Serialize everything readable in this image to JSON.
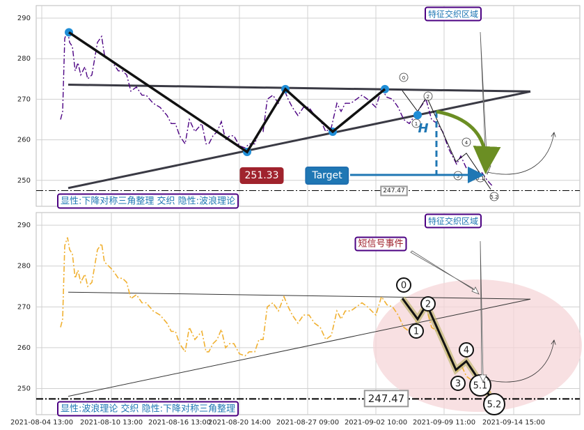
{
  "chart_data": {
    "type": "line",
    "xlim": [
      0,
      156.2
    ],
    "xticks": [
      {
        "value": 1.6,
        "label": "2021-08-04 13:00"
      },
      {
        "value": 21.6,
        "label": "2021-08-10 13:00"
      },
      {
        "value": 41.2,
        "label": "2021-08-16 13:00"
      },
      {
        "value": 58.4,
        "label": "2021-08-20 14:00"
      },
      {
        "value": 78,
        "label": "2021-08-27 09:00"
      },
      {
        "value": 97.6,
        "label": "2021-09-02 10:00"
      },
      {
        "value": 117.2,
        "label": "2021-09-09 11:00"
      },
      {
        "value": 137.2,
        "label": "2021-09-14 15:00"
      }
    ],
    "ylim": [
      243.6,
      293.1
    ],
    "yticks": [
      250,
      260,
      270,
      280,
      290
    ],
    "grid": true,
    "x": [
      7,
      7.6,
      8.2,
      9,
      9.6,
      10.4,
      11.2,
      12,
      12.8,
      14,
      14.8,
      16,
      17.6,
      18.8,
      19.6,
      20.8,
      22,
      23.6,
      24.8,
      26,
      27.2,
      28.8,
      30.4,
      31.6,
      33.6,
      35.6,
      37.6,
      38.8,
      40,
      41.2,
      42.8,
      44,
      45.6,
      47.6,
      48.8,
      49.6,
      50.8,
      52,
      53.2,
      54.4,
      55.6,
      56.8,
      58.4,
      60,
      61.2,
      62.8,
      64,
      65.2,
      66.4,
      68,
      69.6,
      71.2,
      72.4,
      73.6,
      75.2,
      76.8,
      78.4,
      80,
      81.6,
      83.2,
      84.8,
      86.4,
      87.6,
      88.8,
      90.4,
      92,
      93.6,
      95.2,
      97.6,
      99.2,
      100.8,
      102.4,
      104,
      105.6,
      107.2,
      108.8,
      110.4,
      112,
      113.6,
      115.2,
      116.8,
      118.4,
      119.6,
      120.8,
      122,
      123.6,
      125.2,
      126.8,
      128,
      129.6,
      131.2
    ],
    "values": [
      265,
      267,
      285,
      287,
      284,
      283,
      277,
      279,
      276,
      278,
      275,
      276,
      284,
      285.5,
      281,
      280,
      279,
      277,
      277,
      276,
      272,
      273,
      271,
      271,
      269,
      268,
      266,
      264,
      264,
      261,
      259,
      265,
      262,
      264,
      259,
      259,
      261,
      262,
      264.5,
      260,
      261,
      261,
      258.5,
      258,
      259,
      259,
      262,
      262,
      270,
      271,
      269,
      272.5,
      270,
      268,
      266,
      268,
      268,
      266,
      265,
      262,
      263,
      269,
      267,
      269,
      269,
      270,
      271,
      270,
      268,
      272.5,
      270.5,
      270,
      268,
      265,
      264,
      266,
      268,
      270,
      265,
      264,
      262,
      258,
      256,
      254,
      256,
      253,
      252,
      252,
      252,
      250,
      248.5
    ],
    "upper_line": {
      "x": [
        9.2,
        142
      ],
      "values": [
        273.6,
        271.9
      ]
    },
    "lower_line": {
      "x": [
        9.2,
        142
      ],
      "values": [
        248.1,
        271.9
      ]
    },
    "pivots": {
      "x": [
        9.4,
        60.6,
        71.6,
        85.2,
        100.2,
        109.6
      ],
      "values": [
        286.5,
        257,
        272.5,
        262,
        272.5,
        266.1
      ]
    },
    "wave": {
      "x": [
        105.2,
        109.6,
        112.2,
        120.6,
        123.6,
        130.6
      ],
      "values": [
        272.1,
        267,
        270.6,
        254.6,
        256.7,
        247.8
      ],
      "labels": [
        "0",
        "1",
        "2",
        "3",
        "4",
        "5.1",
        "5.2"
      ]
    },
    "level": 247.47,
    "panels": [
      {
        "color": "#4b0082",
        "caption": "显性:下降对称三角整理 交织 隐性:波浪理论",
        "zone_label": "特征交织区域",
        "price_label": 251.33,
        "target_label": "Target",
        "h_label": "H"
      },
      {
        "color": "#f0b030",
        "caption": "显性:波浪理论 交织 隐性:下降对称三角整理",
        "zone_label": "特征交织区域",
        "event_label": "短信号事件"
      }
    ]
  }
}
